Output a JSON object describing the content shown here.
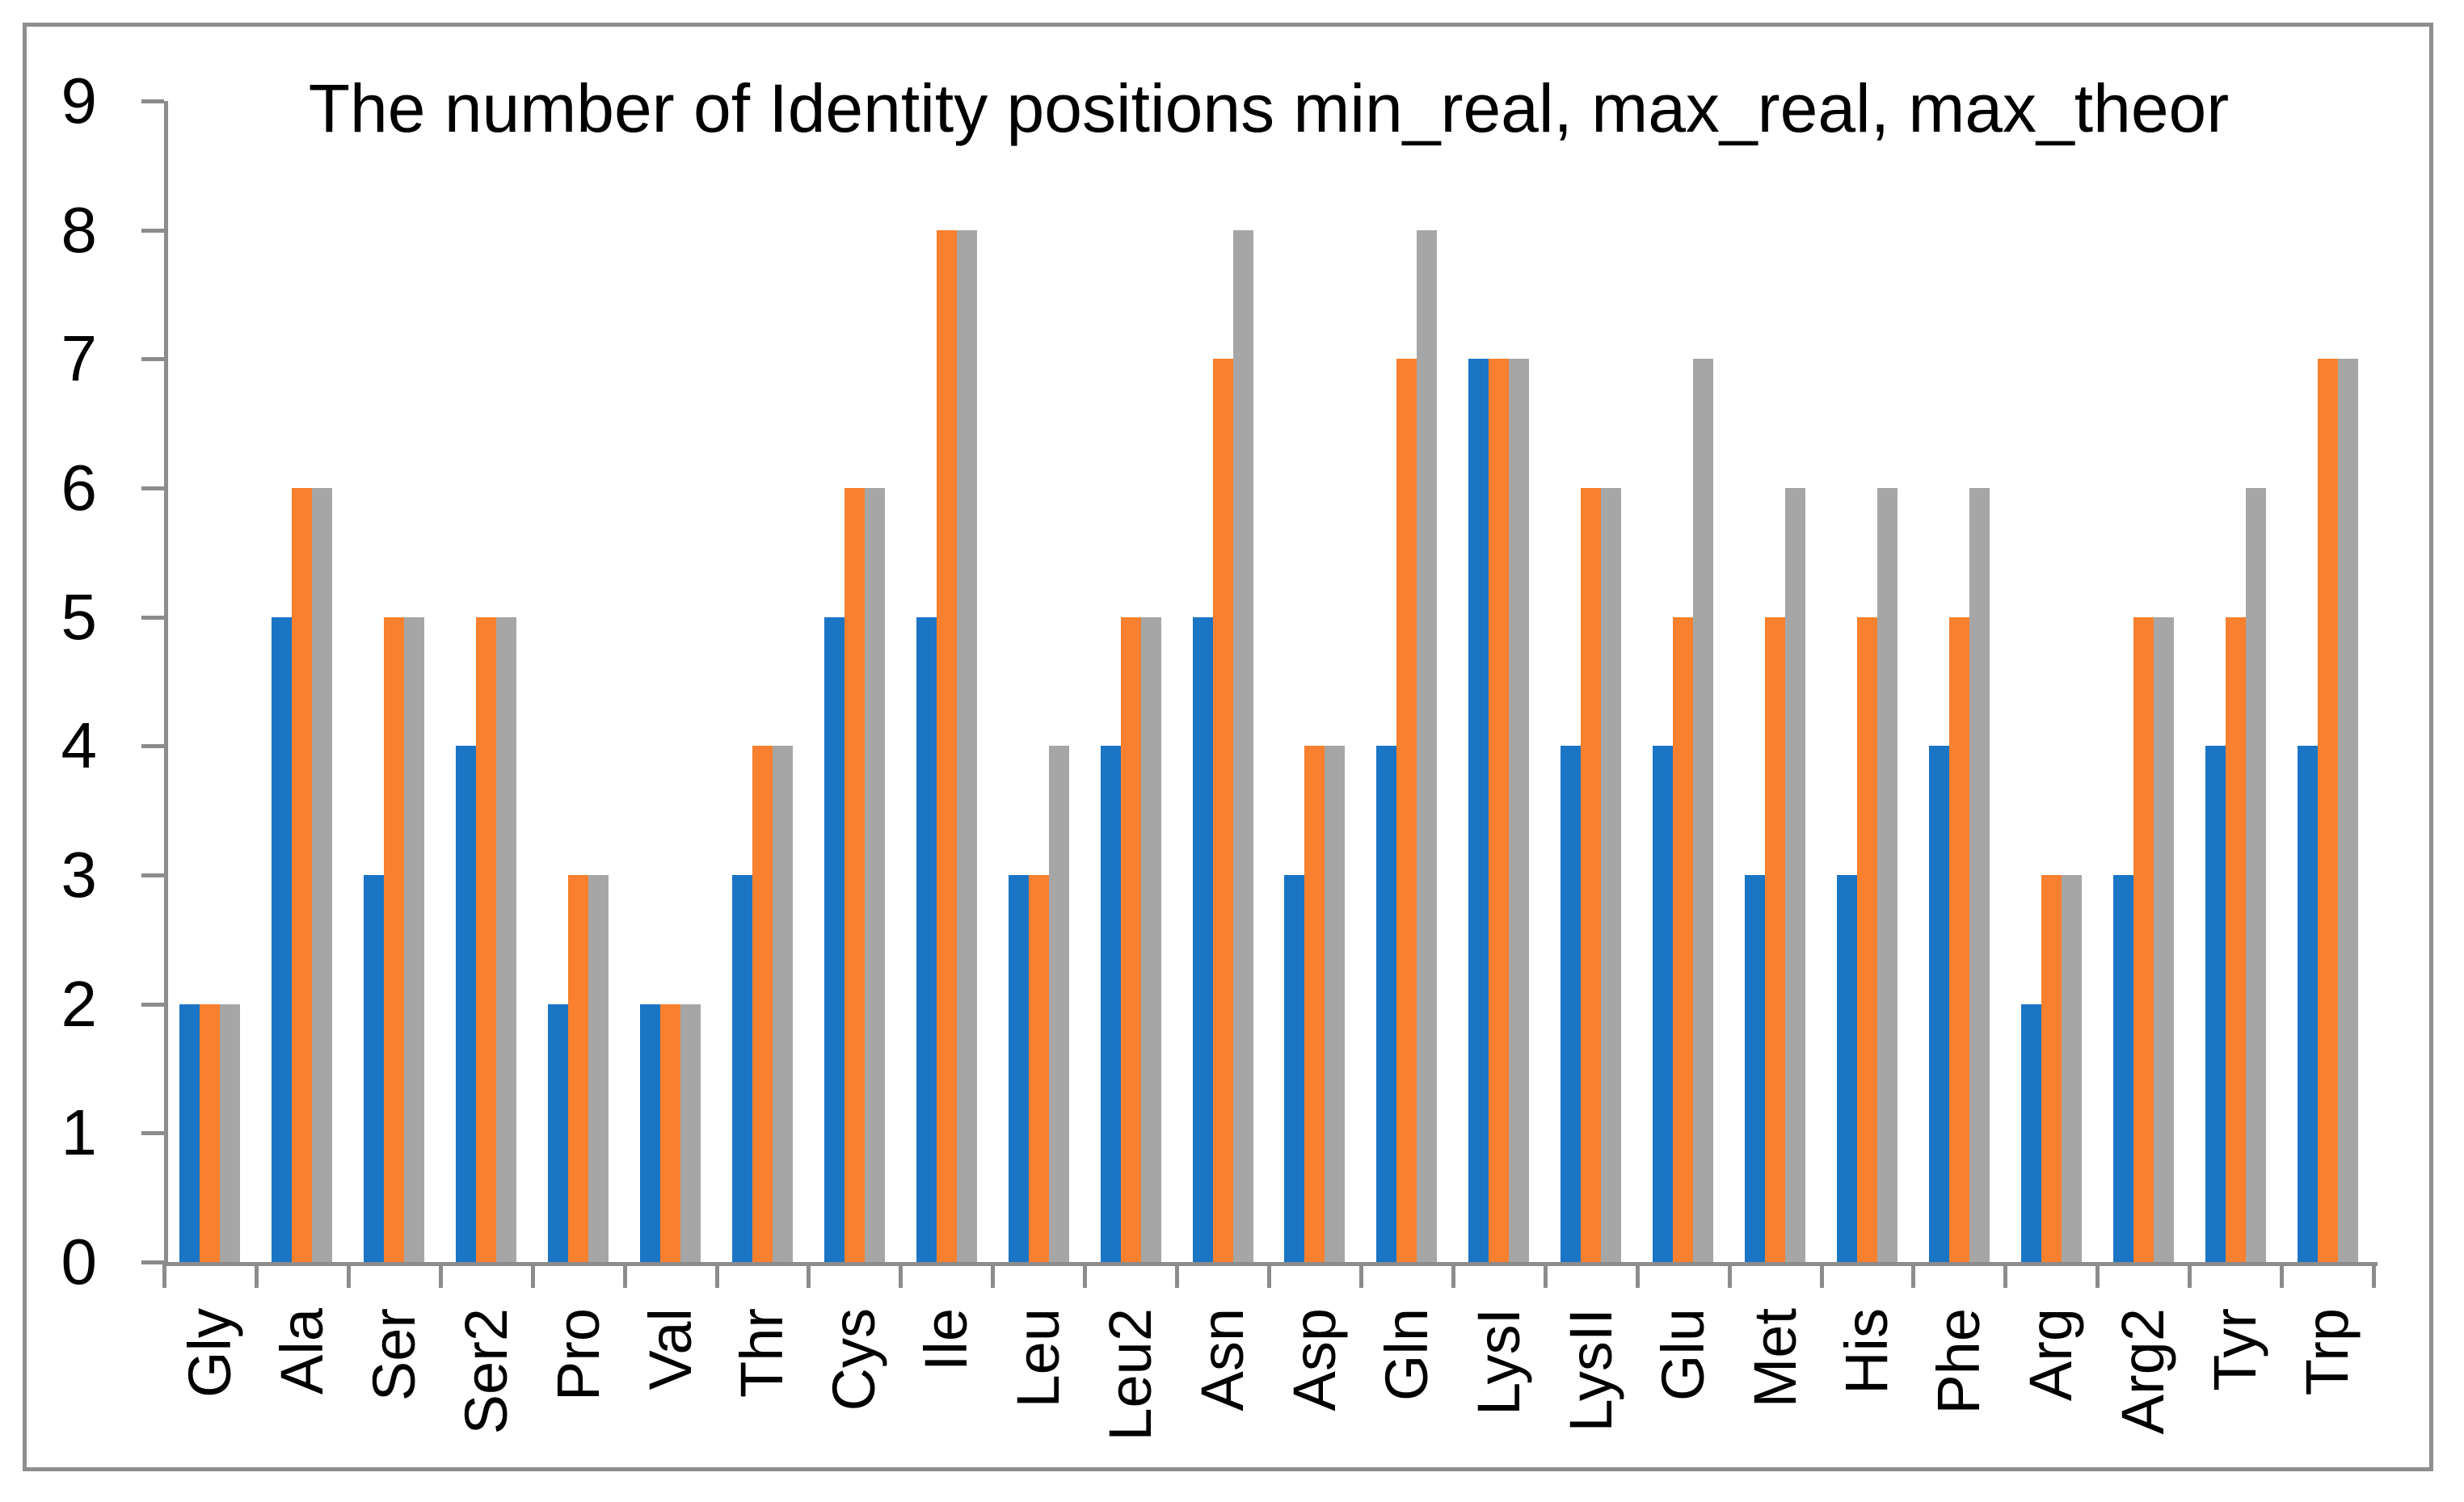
{
  "chart_data": {
    "type": "bar",
    "title": "The number of Identity positions min_real, max_real, max_theor",
    "categories": [
      "Gly",
      "Ala",
      "Ser",
      "Ser2",
      "Pro",
      "Val",
      "Thr",
      "Cys",
      "Ile",
      "Leu",
      "Leu2",
      "Asn",
      "Asp",
      "Gln",
      "LysI",
      "LysII",
      "Glu",
      "Met",
      "His",
      "Phe",
      "Arg",
      "Arg2",
      "Tyr",
      "Trp"
    ],
    "series": [
      {
        "name": "min_real",
        "color": "#1b75c5",
        "values": [
          2,
          5,
          3,
          4,
          2,
          2,
          3,
          5,
          5,
          3,
          4,
          5,
          3,
          4,
          7,
          4,
          4,
          3,
          3,
          4,
          2,
          3,
          4,
          4
        ]
      },
      {
        "name": "max_real",
        "color": "#f8802e",
        "values": [
          2,
          6,
          5,
          5,
          3,
          2,
          4,
          6,
          8,
          3,
          5,
          7,
          4,
          7,
          7,
          6,
          5,
          5,
          5,
          5,
          3,
          5,
          5,
          7
        ]
      },
      {
        "name": "max_theor",
        "color": "#a6a6a6",
        "values": [
          2,
          6,
          5,
          5,
          3,
          2,
          4,
          6,
          8,
          4,
          5,
          8,
          4,
          8,
          7,
          6,
          7,
          6,
          6,
          6,
          3,
          5,
          6,
          7
        ]
      }
    ],
    "xlabel": "",
    "ylabel": "",
    "ylim": [
      0,
      9
    ],
    "y_ticks": [
      0,
      1,
      2,
      3,
      4,
      5,
      6,
      7,
      8,
      9
    ],
    "grid": false,
    "legend": "none",
    "colors": {
      "axis": "#8c8c8c",
      "frame_border": "#8e8e8e",
      "background": "#ffffff",
      "text": "#000000"
    }
  }
}
